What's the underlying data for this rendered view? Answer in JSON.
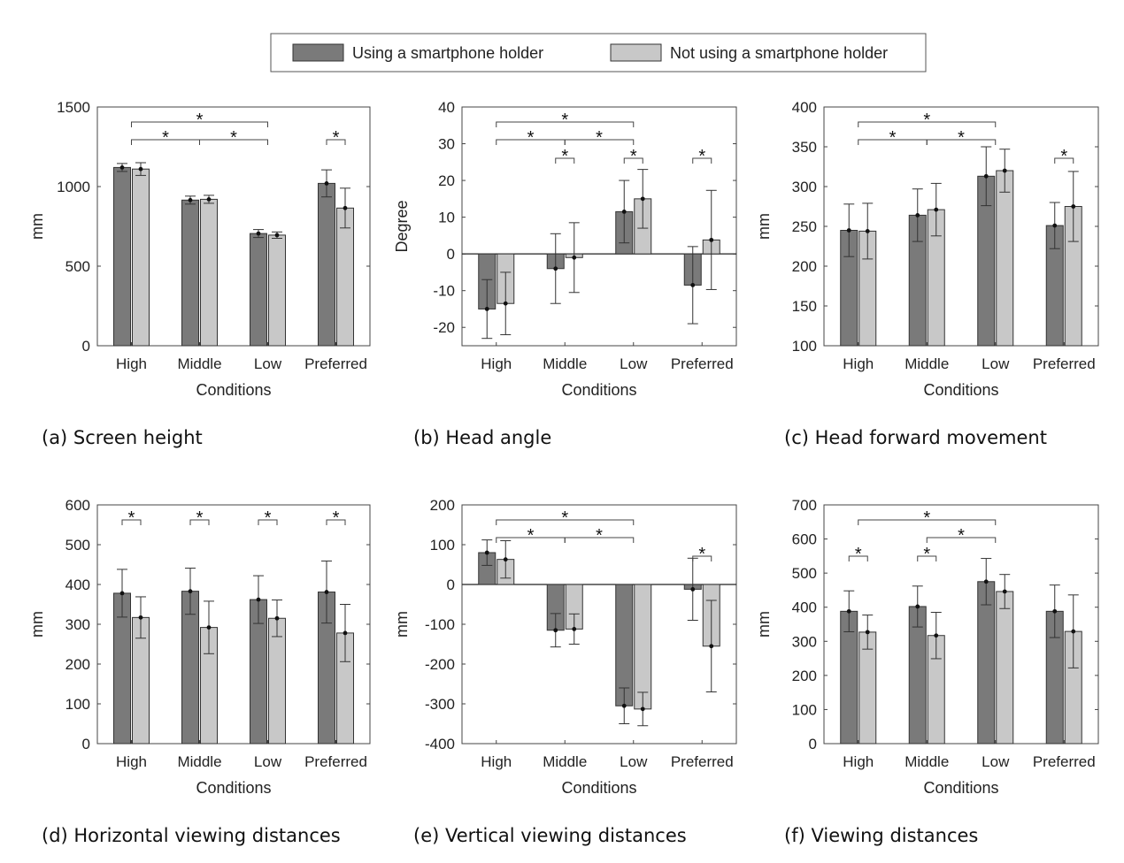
{
  "legend": {
    "items": [
      {
        "label": "Using a smartphone holder",
        "color": "#7a7a7a"
      },
      {
        "label": "Not using a smartphone holder",
        "color": "#c8c8c8"
      }
    ]
  },
  "chart_data": [
    {
      "type": "bar",
      "caption": "(a) Screen height",
      "categories": [
        "High",
        "Middle",
        "Low",
        "Preferred"
      ],
      "xlabel": "Conditions",
      "ylabel": "mm",
      "ylim": [
        0,
        1500
      ],
      "yticks": [
        0,
        500,
        1000,
        1500
      ],
      "series": [
        {
          "values": [
            1120,
            915,
            705,
            1020
          ],
          "errors": [
            25,
            25,
            25,
            85
          ]
        },
        {
          "values": [
            1110,
            920,
            695,
            865
          ],
          "errors": [
            40,
            25,
            20,
            125
          ]
        }
      ],
      "significance": [
        {
          "from": 0,
          "to": 2,
          "level": 0,
          "label": "*"
        },
        {
          "from": 0,
          "to": 1,
          "level": 1,
          "label": "*"
        },
        {
          "from": 1,
          "to": 2,
          "level": 1,
          "label": "*"
        },
        {
          "from": 3,
          "to": 3,
          "level": 1,
          "label": "*",
          "within": true
        }
      ]
    },
    {
      "type": "bar",
      "caption": "(b) Head angle",
      "categories": [
        "High",
        "Middle",
        "Low",
        "Preferred"
      ],
      "xlabel": "Conditions",
      "ylabel": "Degree",
      "ylim": [
        -25,
        40
      ],
      "yticks": [
        -20,
        -10,
        0,
        10,
        20,
        30,
        40
      ],
      "series": [
        {
          "values": [
            -15,
            -4,
            11.5,
            -8.5
          ],
          "errors": [
            8,
            9.5,
            8.5,
            10.5
          ]
        },
        {
          "values": [
            -13.5,
            -1,
            15,
            3.8
          ],
          "errors": [
            8.5,
            9.5,
            8,
            13.5
          ]
        }
      ],
      "significance": [
        {
          "from": 0,
          "to": 2,
          "level": 0,
          "label": "*"
        },
        {
          "from": 0,
          "to": 1,
          "level": 1,
          "label": "*"
        },
        {
          "from": 1,
          "to": 2,
          "level": 1,
          "label": "*"
        },
        {
          "from": 1,
          "to": 1,
          "level": 2,
          "label": "*",
          "within": true
        },
        {
          "from": 2,
          "to": 2,
          "level": 2,
          "label": "*",
          "within": true
        },
        {
          "from": 3,
          "to": 3,
          "level": 2,
          "label": "*",
          "within": true
        }
      ]
    },
    {
      "type": "bar",
      "caption": "(c) Head forward movement",
      "categories": [
        "High",
        "Middle",
        "Low",
        "Preferred"
      ],
      "xlabel": "Conditions",
      "ylabel": "mm",
      "ylim": [
        100,
        400
      ],
      "yticks": [
        100,
        150,
        200,
        250,
        300,
        350,
        400
      ],
      "series": [
        {
          "values": [
            245,
            264,
            313,
            251
          ],
          "errors": [
            33,
            33,
            37,
            29
          ]
        },
        {
          "values": [
            244,
            271,
            320,
            275
          ],
          "errors": [
            35,
            33,
            27,
            44
          ]
        }
      ],
      "significance": [
        {
          "from": 0,
          "to": 2,
          "level": 0,
          "label": "*"
        },
        {
          "from": 0,
          "to": 1,
          "level": 1,
          "label": "*"
        },
        {
          "from": 1,
          "to": 2,
          "level": 1,
          "label": "*"
        },
        {
          "from": 3,
          "to": 3,
          "level": 2,
          "label": "*",
          "within": true
        }
      ]
    },
    {
      "type": "bar",
      "caption": "(d) Horizontal viewing distances",
      "categories": [
        "High",
        "Middle",
        "Low",
        "Preferred"
      ],
      "xlabel": "Conditions",
      "ylabel": "mm",
      "ylim": [
        0,
        600
      ],
      "yticks": [
        0,
        100,
        200,
        300,
        400,
        500,
        600
      ],
      "series": [
        {
          "values": [
            378,
            383,
            362,
            381
          ],
          "errors": [
            60,
            58,
            60,
            78
          ]
        },
        {
          "values": [
            317,
            292,
            315,
            278
          ],
          "errors": [
            52,
            66,
            46,
            72
          ]
        }
      ],
      "significance": [
        {
          "from": 0,
          "to": 0,
          "level": 0,
          "label": "*",
          "within": true
        },
        {
          "from": 1,
          "to": 1,
          "level": 0,
          "label": "*",
          "within": true
        },
        {
          "from": 2,
          "to": 2,
          "level": 0,
          "label": "*",
          "within": true
        },
        {
          "from": 3,
          "to": 3,
          "level": 0,
          "label": "*",
          "within": true
        }
      ]
    },
    {
      "type": "bar",
      "caption": "(e) Vertical viewing distances",
      "categories": [
        "High",
        "Middle",
        "Low",
        "Preferred"
      ],
      "xlabel": "Conditions",
      "ylabel": "mm",
      "ylim": [
        -400,
        200
      ],
      "yticks": [
        -400,
        -300,
        -200,
        -100,
        0,
        100,
        200
      ],
      "series": [
        {
          "values": [
            80,
            -115,
            -305,
            -12
          ],
          "errors": [
            32,
            42,
            45,
            78
          ]
        },
        {
          "values": [
            63,
            -112,
            -313,
            -155
          ],
          "errors": [
            47,
            38,
            42,
            115
          ]
        }
      ],
      "significance": [
        {
          "from": 0,
          "to": 2,
          "level": 0,
          "label": "*"
        },
        {
          "from": 0,
          "to": 1,
          "level": 1,
          "label": "*"
        },
        {
          "from": 1,
          "to": 2,
          "level": 1,
          "label": "*"
        },
        {
          "from": 3,
          "to": 3,
          "level": 2,
          "label": "*",
          "within": true
        }
      ]
    },
    {
      "type": "bar",
      "caption": "(f) Viewing distances",
      "categories": [
        "High",
        "Middle",
        "Low",
        "Preferred"
      ],
      "xlabel": "Conditions",
      "ylabel": "mm",
      "ylim": [
        0,
        700
      ],
      "yticks": [
        0,
        100,
        200,
        300,
        400,
        500,
        600,
        700
      ],
      "series": [
        {
          "values": [
            388,
            402,
            475,
            388
          ],
          "errors": [
            60,
            60,
            68,
            77
          ]
        },
        {
          "values": [
            327,
            317,
            446,
            329
          ],
          "errors": [
            50,
            68,
            50,
            107
          ]
        }
      ],
      "significance": [
        {
          "from": 0,
          "to": 2,
          "level": 0,
          "label": "*"
        },
        {
          "from": 1,
          "to": 2,
          "level": 1,
          "label": "*"
        },
        {
          "from": 0,
          "to": 0,
          "level": 2,
          "label": "*",
          "within": true
        },
        {
          "from": 1,
          "to": 1,
          "level": 2,
          "label": "*",
          "within": true
        }
      ]
    }
  ]
}
